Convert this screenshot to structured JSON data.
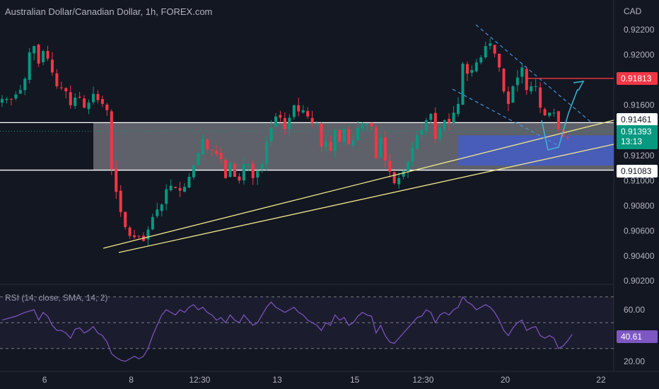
{
  "header": {
    "symbol": "Australian Dollar/Canadian Dollar",
    "timeframe": "1h",
    "exchange": "FOREX.com",
    "currency": "CAD"
  },
  "chart_data": [
    {
      "type": "candlestick",
      "title": "Australian Dollar/Canadian Dollar, 1h, FOREX.com",
      "ylabel": "CAD",
      "ylim": [
        0.902,
        0.9235
      ],
      "y_ticks": [
        "0.92200",
        "0.92000",
        "0.91600",
        "0.91200",
        "0.91000",
        "0.90800",
        "0.90600",
        "0.90400",
        "0.90200"
      ],
      "x_ticks": [
        "6",
        "8",
        "12:30",
        "13",
        "15",
        "12:30",
        "20",
        "22"
      ],
      "x_tick_index": [
        9,
        28,
        43,
        60,
        77,
        92,
        110,
        131
      ],
      "grid": false,
      "colors": {
        "up": "#089981",
        "down": "#f23645",
        "background": "#131722",
        "text": "#b2b5be"
      },
      "key_levels": {
        "resistance_top": 0.91461,
        "support_bottom": 0.91083,
        "target": 0.91813,
        "current": 0.91393
      },
      "price_labels": [
        {
          "text": "0.91813",
          "style": "red"
        },
        {
          "text": "0.91461",
          "style": "white"
        },
        {
          "text": "0.91393",
          "sub": "13:13",
          "style": "green"
        },
        {
          "text": "0.91083",
          "style": "white"
        }
      ],
      "close_path": [
        [
          0,
          0.9165
        ],
        [
          2,
          0.9165
        ],
        [
          4,
          0.9172
        ],
        [
          5,
          0.9181
        ],
        [
          6,
          0.9202
        ],
        [
          7,
          0.9207
        ],
        [
          8,
          0.9193
        ],
        [
          9,
          0.9203
        ],
        [
          10,
          0.9197
        ],
        [
          11,
          0.9186
        ],
        [
          12,
          0.9175
        ],
        [
          13,
          0.9174
        ],
        [
          14,
          0.9171
        ],
        [
          15,
          0.916
        ],
        [
          16,
          0.9166
        ],
        [
          17,
          0.9166
        ],
        [
          18,
          0.9158
        ],
        [
          19,
          0.9162
        ],
        [
          20,
          0.9169
        ],
        [
          21,
          0.9164
        ],
        [
          22,
          0.9161
        ],
        [
          23,
          0.9156
        ],
        [
          24,
          0.9109
        ],
        [
          25,
          0.9091
        ],
        [
          26,
          0.9075
        ],
        [
          27,
          0.9063
        ],
        [
          28,
          0.9056
        ],
        [
          29,
          0.9055
        ],
        [
          30,
          0.9056
        ],
        [
          31,
          0.9052
        ],
        [
          32,
          0.9061
        ],
        [
          33,
          0.9071
        ],
        [
          34,
          0.9077
        ],
        [
          35,
          0.9081
        ],
        [
          36,
          0.9093
        ],
        [
          37,
          0.9096
        ],
        [
          38,
          0.9094
        ],
        [
          39,
          0.9092
        ],
        [
          40,
          0.9095
        ],
        [
          41,
          0.9103
        ],
        [
          42,
          0.9112
        ],
        [
          43,
          0.9122
        ],
        [
          44,
          0.9133
        ],
        [
          45,
          0.9125
        ],
        [
          46,
          0.9124
        ],
        [
          47,
          0.9121
        ],
        [
          48,
          0.9117
        ],
        [
          49,
          0.9102
        ],
        [
          50,
          0.9114
        ],
        [
          51,
          0.9103
        ],
        [
          52,
          0.91
        ],
        [
          53,
          0.9113
        ],
        [
          54,
          0.9113
        ],
        [
          55,
          0.9102
        ],
        [
          56,
          0.9108
        ],
        [
          57,
          0.9113
        ],
        [
          58,
          0.9131
        ],
        [
          59,
          0.9142
        ],
        [
          60,
          0.9151
        ],
        [
          61,
          0.915
        ],
        [
          62,
          0.9141
        ],
        [
          63,
          0.915
        ],
        [
          64,
          0.916
        ],
        [
          65,
          0.9155
        ],
        [
          66,
          0.9156
        ],
        [
          67,
          0.9151
        ],
        [
          68,
          0.9146
        ],
        [
          69,
          0.9145
        ],
        [
          70,
          0.9127
        ],
        [
          71,
          0.9131
        ],
        [
          72,
          0.9124
        ],
        [
          73,
          0.914
        ],
        [
          74,
          0.9131
        ],
        [
          75,
          0.9141
        ],
        [
          76,
          0.9129
        ],
        [
          77,
          0.9132
        ],
        [
          78,
          0.9142
        ],
        [
          79,
          0.9145
        ],
        [
          80,
          0.9145
        ],
        [
          81,
          0.9143
        ],
        [
          82,
          0.9118
        ],
        [
          83,
          0.9134
        ],
        [
          84,
          0.9116
        ],
        [
          85,
          0.9107
        ],
        [
          86,
          0.9098
        ],
        [
          87,
          0.9102
        ],
        [
          88,
          0.9108
        ],
        [
          89,
          0.9115
        ],
        [
          90,
          0.9126
        ],
        [
          91,
          0.9136
        ],
        [
          92,
          0.914
        ],
        [
          93,
          0.9148
        ],
        [
          94,
          0.9153
        ],
        [
          95,
          0.9133
        ],
        [
          96,
          0.9142
        ],
        [
          97,
          0.9148
        ],
        [
          98,
          0.9146
        ],
        [
          99,
          0.9154
        ],
        [
          100,
          0.9161
        ],
        [
          101,
          0.9193
        ],
        [
          102,
          0.9185
        ],
        [
          103,
          0.9188
        ],
        [
          104,
          0.9194
        ],
        [
          105,
          0.9198
        ],
        [
          106,
          0.9207
        ],
        [
          107,
          0.9209
        ],
        [
          108,
          0.9201
        ],
        [
          109,
          0.919
        ],
        [
          110,
          0.9171
        ],
        [
          111,
          0.9161
        ],
        [
          112,
          0.9175
        ],
        [
          113,
          0.9182
        ],
        [
          114,
          0.919
        ],
        [
          115,
          0.9172
        ],
        [
          116,
          0.9175
        ],
        [
          117,
          0.9175
        ],
        [
          118,
          0.9158
        ],
        [
          119,
          0.9152
        ],
        [
          120,
          0.9154
        ],
        [
          121,
          0.9154
        ],
        [
          122,
          0.9141
        ],
        [
          123,
          0.9135
        ],
        [
          124,
          0.9134
        ]
      ]
    },
    {
      "type": "line",
      "name": "RSI (14, close, SMA, 14, 2)",
      "ylim": [
        15,
        75
      ],
      "y_ticks": [
        "60.00",
        "20.00"
      ],
      "bands": [
        70,
        50,
        30
      ],
      "current": 40.61,
      "color": "#7e57c2",
      "values_path": [
        [
          0,
          52
        ],
        [
          3,
          55
        ],
        [
          5,
          58
        ],
        [
          7,
          60
        ],
        [
          8,
          52
        ],
        [
          9,
          58
        ],
        [
          10,
          55
        ],
        [
          11,
          48
        ],
        [
          12,
          44
        ],
        [
          13,
          44
        ],
        [
          14,
          42
        ],
        [
          15,
          38
        ],
        [
          16,
          45
        ],
        [
          17,
          46
        ],
        [
          18,
          42
        ],
        [
          19,
          44
        ],
        [
          20,
          47
        ],
        [
          21,
          42
        ],
        [
          22,
          40
        ],
        [
          23,
          35
        ],
        [
          24,
          26
        ],
        [
          25,
          23
        ],
        [
          26,
          21
        ],
        [
          27,
          20
        ],
        [
          28,
          22
        ],
        [
          29,
          24
        ],
        [
          30,
          22
        ],
        [
          31,
          24
        ],
        [
          32,
          30
        ],
        [
          33,
          40
        ],
        [
          34,
          48
        ],
        [
          35,
          56
        ],
        [
          36,
          60
        ],
        [
          37,
          58
        ],
        [
          38,
          56
        ],
        [
          39,
          60
        ],
        [
          40,
          58
        ],
        [
          41,
          62
        ],
        [
          42,
          64
        ],
        [
          43,
          60
        ],
        [
          44,
          62
        ],
        [
          45,
          58
        ],
        [
          46,
          56
        ],
        [
          47,
          52
        ],
        [
          48,
          54
        ],
        [
          49,
          50
        ],
        [
          50,
          56
        ],
        [
          51,
          52
        ],
        [
          52,
          50
        ],
        [
          53,
          56
        ],
        [
          54,
          52
        ],
        [
          55,
          48
        ],
        [
          56,
          50
        ],
        [
          57,
          56
        ],
        [
          58,
          62
        ],
        [
          59,
          66
        ],
        [
          60,
          62
        ],
        [
          61,
          60
        ],
        [
          62,
          58
        ],
        [
          63,
          60
        ],
        [
          64,
          62
        ],
        [
          65,
          58
        ],
        [
          66,
          56
        ],
        [
          67,
          52
        ],
        [
          68,
          50
        ],
        [
          69,
          48
        ],
        [
          70,
          44
        ],
        [
          71,
          50
        ],
        [
          72,
          48
        ],
        [
          73,
          56
        ],
        [
          74,
          52
        ],
        [
          75,
          54
        ],
        [
          76,
          48
        ],
        [
          77,
          50
        ],
        [
          78,
          55
        ],
        [
          79,
          58
        ],
        [
          80,
          56
        ],
        [
          81,
          55
        ],
        [
          82,
          42
        ],
        [
          83,
          48
        ],
        [
          84,
          40
        ],
        [
          85,
          35
        ],
        [
          86,
          34
        ],
        [
          87,
          38
        ],
        [
          88,
          42
        ],
        [
          89,
          46
        ],
        [
          90,
          50
        ],
        [
          91,
          54
        ],
        [
          92,
          55
        ],
        [
          93,
          60
        ],
        [
          94,
          58
        ],
        [
          95,
          50
        ],
        [
          96,
          56
        ],
        [
          97,
          58
        ],
        [
          98,
          56
        ],
        [
          99,
          60
        ],
        [
          100,
          62
        ],
        [
          101,
          70
        ],
        [
          102,
          66
        ],
        [
          103,
          64
        ],
        [
          104,
          60
        ],
        [
          105,
          62
        ],
        [
          106,
          64
        ],
        [
          107,
          62
        ],
        [
          108,
          58
        ],
        [
          109,
          52
        ],
        [
          110,
          44
        ],
        [
          111,
          40
        ],
        [
          112,
          46
        ],
        [
          113,
          50
        ],
        [
          114,
          52
        ],
        [
          115,
          44
        ],
        [
          116,
          46
        ],
        [
          117,
          47
        ],
        [
          118,
          40
        ],
        [
          119,
          38
        ],
        [
          120,
          40
        ],
        [
          121,
          38
        ],
        [
          122,
          30
        ],
        [
          123,
          32
        ],
        [
          124,
          36
        ],
        [
          125,
          41
        ]
      ]
    }
  ]
}
